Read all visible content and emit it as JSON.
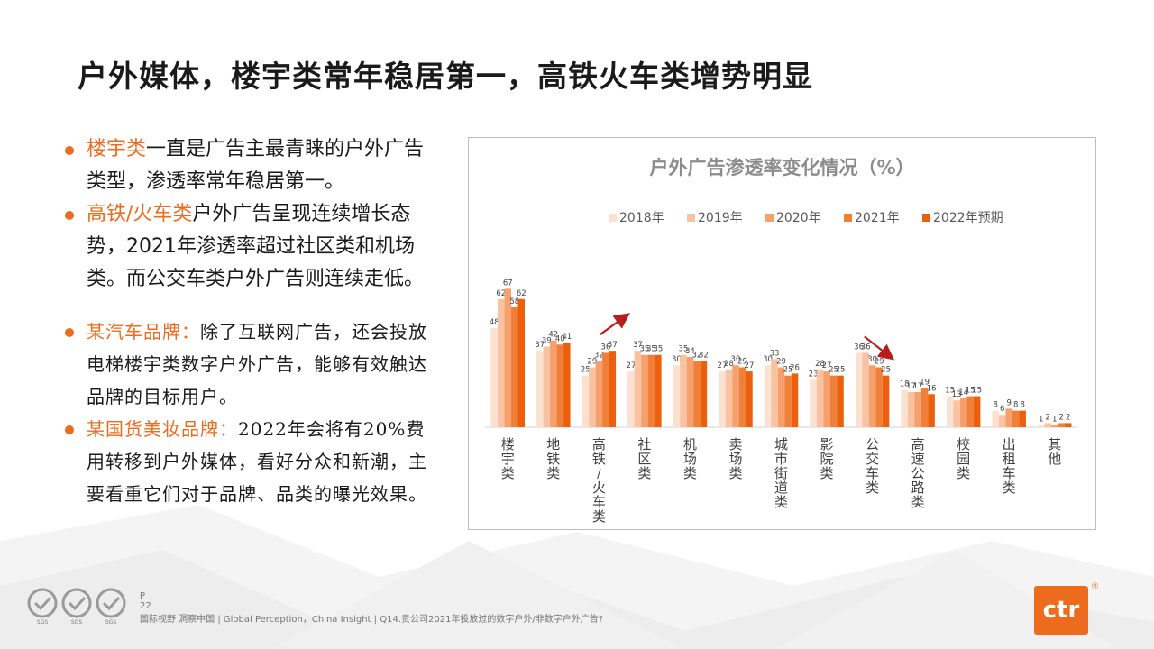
{
  "title": "户外媒体，楼宇类常年稳居第一，高铁火车类增势明显",
  "bullets": [
    {
      "highlight": "楼宇类",
      "text": "一直是广告主最青睐的户外广告类型，渗透率常年稳居第一。"
    },
    {
      "highlight": "高铁/火车类",
      "text": "户外广告呈现连续增长态势，2021年渗透率超过社区类和机场类。而公交车类户外广告则连续走低。"
    }
  ],
  "quotes": [
    {
      "highlight": "某汽车品牌：",
      "text": "除了互联网广告，还会投放电梯楼宇类数字户外广告，能够有效触达品牌的目标用户。"
    },
    {
      "highlight": "某国货美妆品牌：",
      "text": "2022年会将有20%费用转移到户外媒体，看好分众和新潮，主要看重它们对于品牌、品类的曝光效果。"
    }
  ],
  "chart_data": {
    "type": "bar",
    "title": "户外广告渗透率变化情况（%）",
    "legend_position": "top",
    "categories": [
      "楼宇类",
      "地铁类",
      "高铁/火车类",
      "社区类",
      "机场类",
      "卖场类",
      "城市街道类",
      "影院类",
      "公交车类",
      "高速公路类",
      "校园类",
      "出租车类",
      "其他"
    ],
    "series": [
      {
        "name": "2018年",
        "values": [
          48,
          37,
          25,
          27,
          30,
          27,
          30,
          23,
          36,
          18,
          15,
          8,
          1
        ]
      },
      {
        "name": "2019年",
        "values": [
          62,
          39,
          29,
          37,
          35,
          28,
          33,
          28,
          36,
          17,
          13,
          6,
          2
        ]
      },
      {
        "name": "2020年",
        "values": [
          67,
          42,
          32,
          35,
          34,
          30,
          29,
          27,
          30,
          17,
          14,
          9,
          1
        ]
      },
      {
        "name": "2021年",
        "values": [
          58,
          40,
          36,
          35,
          32,
          29,
          25,
          25,
          29,
          19,
          15,
          8,
          2
        ]
      },
      {
        "name": "2022年预期",
        "values": [
          62,
          41,
          37,
          35,
          32,
          27,
          26,
          25,
          25,
          16,
          15,
          8,
          2
        ]
      }
    ],
    "colors": [
      "#fce1d1",
      "#f9c3a2",
      "#f6a06e",
      "#f07f39",
      "#ec5f0c"
    ],
    "ylim": [
      0,
      75
    ],
    "grid": false,
    "trend_arrows": [
      "高铁/火车类",
      "公交车类"
    ],
    "arrow_color": "#b81c1c"
  },
  "footer": {
    "page": "P 22",
    "note": "国际视野 洞察中国 |  Global Perception，China Insight | Q14.贵公司2021年投放过的数字户外/非数字户外广告?",
    "cert_label": "SGS",
    "logo_text": "ctr",
    "logo_mark": "®",
    "brand_color": "#ec6b1c"
  }
}
